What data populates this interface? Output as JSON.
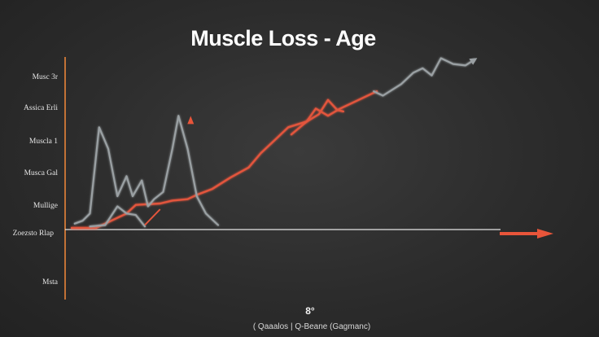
{
  "chart_data": {
    "type": "line",
    "title": "Muscle Loss - Age",
    "y_tick_labels": [
      "Musc 3r",
      "Assica Erli",
      "Muscla 1",
      "Musca Gal",
      "Mullige",
      "Zoezsto Rlap",
      "Msta"
    ],
    "x_caption_number": "8°",
    "x_caption": "( Qaaalos | Q-Beane (Gagmanc)",
    "grid": false,
    "colors": {
      "background": "#2c2c2c",
      "axis_y": "#e8843a",
      "axis_x": "#e6e6e6",
      "arrow": "#e8553a",
      "red_series": "#e2553c",
      "gray_series": "#9aa0a3"
    },
    "series": [
      {
        "color": "red",
        "points": [
          [
            0.0,
            0.0
          ],
          [
            0.1,
            0.0
          ],
          [
            0.4,
            0.0
          ],
          [
            0.55,
            0.03
          ],
          [
            0.75,
            0.07
          ],
          [
            0.9,
            0.1
          ],
          [
            1.05,
            0.16
          ],
          [
            1.45,
            0.17
          ],
          [
            1.65,
            0.19
          ],
          [
            1.9,
            0.2
          ],
          [
            2.05,
            0.23
          ],
          [
            2.3,
            0.27
          ],
          [
            2.6,
            0.35
          ],
          [
            2.9,
            0.42
          ],
          [
            3.1,
            0.52
          ],
          [
            3.35,
            0.62
          ],
          [
            3.55,
            0.7
          ],
          [
            3.85,
            0.74
          ],
          [
            4.0,
            0.83
          ],
          [
            4.2,
            0.78
          ],
          [
            4.4,
            0.83
          ],
          [
            4.7,
            0.89
          ],
          [
            4.9,
            0.93
          ],
          [
            5.0,
            0.95
          ]
        ]
      },
      {
        "color": "red",
        "points": [
          [
            3.6,
            0.65
          ],
          [
            3.85,
            0.74
          ],
          [
            4.05,
            0.79
          ],
          [
            4.2,
            0.89
          ],
          [
            4.35,
            0.82
          ],
          [
            4.45,
            0.81
          ]
        ]
      },
      {
        "color": "gray",
        "points": [
          [
            0.05,
            0.03
          ],
          [
            0.18,
            0.05
          ],
          [
            0.3,
            0.1
          ],
          [
            0.45,
            0.7
          ],
          [
            0.6,
            0.55
          ],
          [
            0.75,
            0.22
          ],
          [
            0.9,
            0.36
          ],
          [
            1.0,
            0.22
          ],
          [
            1.15,
            0.33
          ],
          [
            1.25,
            0.15
          ],
          [
            1.35,
            0.2
          ],
          [
            1.5,
            0.25
          ],
          [
            1.65,
            0.55
          ],
          [
            1.75,
            0.78
          ],
          [
            1.9,
            0.55
          ],
          [
            2.05,
            0.22
          ],
          [
            2.2,
            0.1
          ],
          [
            2.4,
            0.02
          ]
        ]
      },
      {
        "color": "gray",
        "points": [
          [
            0.3,
            0.01
          ],
          [
            0.55,
            0.02
          ],
          [
            0.75,
            0.15
          ],
          [
            0.9,
            0.1
          ],
          [
            1.05,
            0.09
          ],
          [
            1.2,
            0.01
          ]
        ]
      },
      {
        "color": "gray",
        "points": [
          [
            4.95,
            0.95
          ],
          [
            5.1,
            0.92
          ],
          [
            5.4,
            1.0
          ],
          [
            5.6,
            1.08
          ],
          [
            5.75,
            1.11
          ],
          [
            5.9,
            1.06
          ],
          [
            6.05,
            1.18
          ],
          [
            6.25,
            1.14
          ],
          [
            6.45,
            1.13
          ],
          [
            6.6,
            1.17
          ]
        ]
      }
    ],
    "x_range": [
      0,
      6.6
    ],
    "y_range": [
      0,
      1.2
    ],
    "arrow_marker": {
      "x": 1.95,
      "y": 0.7
    }
  }
}
